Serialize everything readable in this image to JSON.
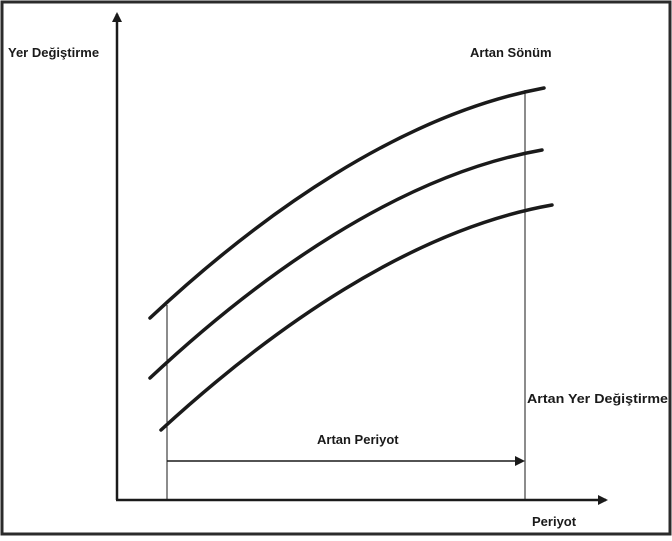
{
  "labels": {
    "y_axis": "Yer Değiştirme",
    "x_axis": "Periyot",
    "damping": "Artan Sönüm",
    "displacement": "Artan Yer Değiştirme",
    "period": "Artan Periyot"
  },
  "colors": {
    "line": "#1a1a1a",
    "border": "#2b2b2b",
    "background": "#ffffff"
  },
  "curves": [
    {
      "name": "upper-curve"
    },
    {
      "name": "middle-curve"
    },
    {
      "name": "lower-curve"
    }
  ]
}
